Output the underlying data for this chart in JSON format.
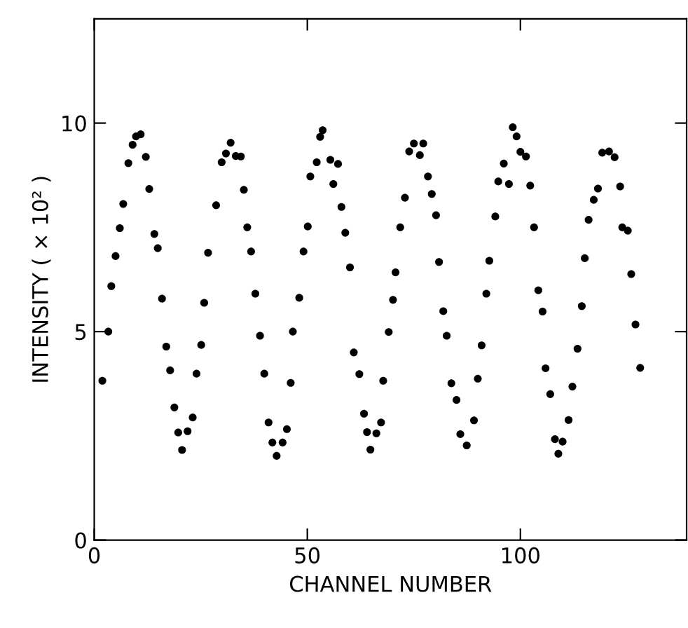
{
  "chart_data": {
    "type": "scatter",
    "xlabel": "CHANNEL NUMBER",
    "ylabel": "INTENSITY ( × 10² )",
    "xlim": [
      0,
      139
    ],
    "ylim": [
      0,
      12.5
    ],
    "xticks": [
      0,
      50,
      100
    ],
    "yticks": [
      0,
      5,
      10
    ],
    "grid": false,
    "marker": "circle",
    "series": [
      {
        "color": "#000000",
        "x": [
          1.9,
          3.3,
          4.0,
          5.0,
          6.0,
          6.8,
          8.0,
          9.0,
          9.8,
          10.9,
          12.1,
          12.9,
          14.1,
          14.9,
          15.9,
          16.9,
          17.8,
          18.8,
          19.7,
          20.6,
          21.9,
          23.1,
          24.0,
          25.1,
          25.8,
          26.7,
          28.6,
          29.9,
          30.9,
          32.0,
          33.2,
          34.4,
          35.1,
          35.9,
          36.8,
          37.8,
          38.9,
          39.9,
          40.9,
          41.8,
          42.8,
          44.2,
          45.2,
          46.1,
          46.6,
          48.1,
          49.1,
          50.1,
          50.7,
          52.2,
          53.0,
          53.6,
          55.4,
          56.1,
          57.2,
          58.0,
          58.9,
          60.0,
          60.9,
          62.2,
          63.3,
          64.0,
          64.8,
          66.2,
          67.3,
          67.8,
          69.1,
          70.1,
          70.7,
          71.8,
          72.9,
          73.9,
          75.0,
          76.4,
          77.2,
          78.3,
          79.2,
          80.2,
          80.9,
          81.9,
          82.7,
          83.8,
          85.0,
          85.9,
          87.4,
          89.1,
          90.0,
          90.9,
          92.0,
          92.7,
          94.1,
          94.8,
          96.1,
          97.3,
          98.2,
          99.1,
          100.0,
          101.3,
          102.3,
          103.2,
          104.2,
          105.2,
          105.9,
          107.0,
          108.1,
          108.9,
          109.9,
          111.3,
          112.2,
          113.4,
          114.4,
          115.1,
          116.0,
          117.2,
          118.2,
          119.2,
          120.8,
          122.1,
          123.4,
          123.9,
          125.2,
          126.0,
          127.0,
          128.1
        ],
        "values": [
          3.82,
          5.0,
          6.09,
          6.81,
          7.48,
          8.06,
          9.04,
          9.48,
          9.68,
          9.73,
          9.19,
          8.42,
          7.34,
          7.0,
          5.79,
          4.64,
          4.07,
          3.18,
          2.58,
          2.16,
          2.61,
          2.94,
          3.99,
          4.68,
          5.69,
          6.89,
          8.03,
          9.06,
          9.27,
          9.53,
          9.21,
          9.2,
          8.4,
          7.5,
          6.92,
          5.91,
          4.9,
          3.99,
          2.82,
          2.34,
          2.02,
          2.34,
          2.66,
          3.77,
          5.0,
          5.81,
          6.92,
          7.52,
          8.72,
          9.06,
          9.67,
          9.83,
          9.12,
          8.54,
          9.02,
          7.99,
          7.37,
          6.54,
          4.5,
          3.98,
          3.03,
          2.59,
          2.17,
          2.56,
          2.82,
          3.82,
          4.99,
          5.76,
          6.42,
          7.5,
          8.21,
          9.32,
          9.51,
          9.23,
          9.51,
          8.72,
          8.3,
          7.79,
          6.67,
          5.49,
          4.9,
          3.76,
          3.36,
          2.54,
          2.27,
          2.87,
          3.87,
          4.67,
          5.91,
          6.7,
          7.76,
          8.6,
          9.03,
          8.54,
          9.9,
          9.68,
          9.31,
          9.2,
          8.5,
          7.5,
          5.99,
          5.48,
          4.12,
          3.5,
          2.42,
          2.07,
          2.36,
          2.88,
          3.68,
          4.59,
          5.61,
          6.76,
          7.68,
          8.16,
          8.43,
          9.29,
          9.32,
          9.18,
          8.48,
          7.5,
          7.42,
          6.38,
          5.17,
          4.13
        ]
      }
    ]
  }
}
